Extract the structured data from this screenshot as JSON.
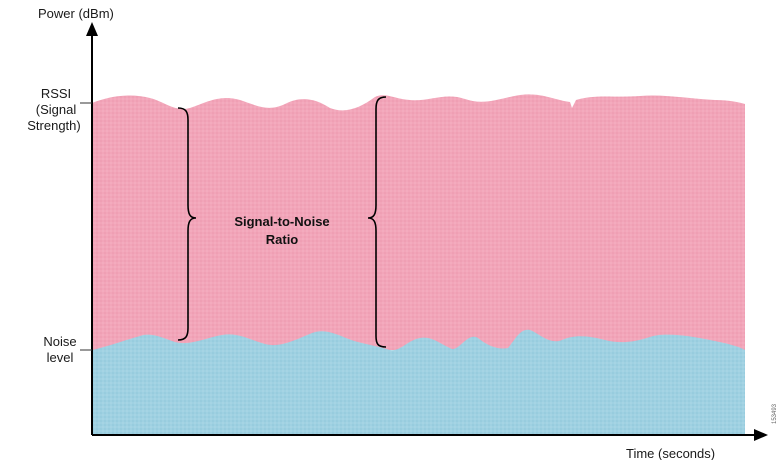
{
  "diagram": {
    "y_axis_label": "Power (dBm)",
    "x_axis_label": "Time (seconds)",
    "rssi_label_lines": [
      "RSSI",
      "(Signal",
      "Strength)"
    ],
    "noise_label_lines": [
      "Noise",
      "level"
    ],
    "snr_label_lines": [
      "Signal-to-Noise",
      "Ratio"
    ],
    "figure_id": "153493",
    "colors": {
      "signal_area": "#f2a5b9",
      "noise_area": "#9fd1e2",
      "axis": "#000000"
    }
  }
}
